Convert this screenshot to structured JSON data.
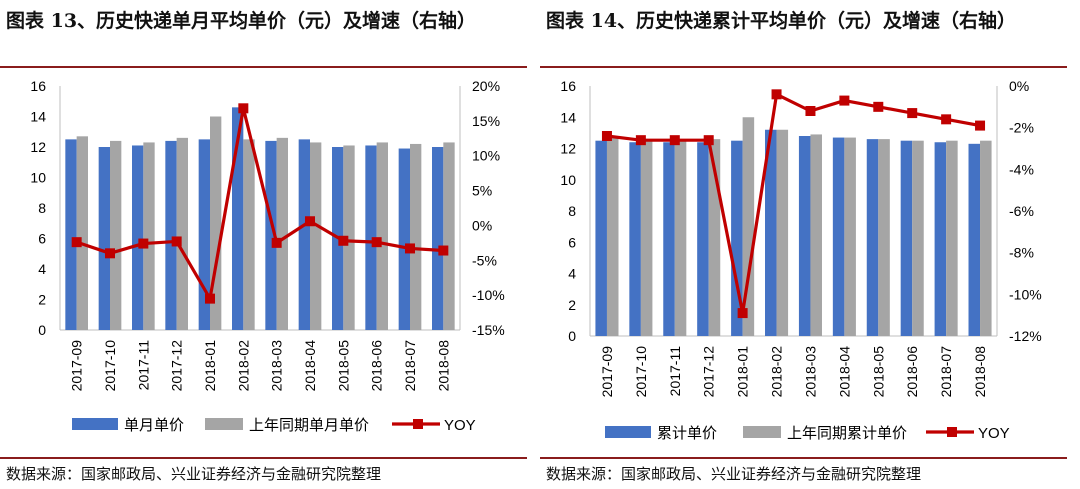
{
  "charts": [
    {
      "title": "图表 13、历史快递单月平均单价（元）及增速（右轴）",
      "source": "数据来源：国家邮政局、兴业证券经济与金融研究院整理"
    },
    {
      "title": "图表 14、历史快递累计平均单价（元）及增速（右轴）",
      "source": "数据来源：国家邮政局、兴业证券经济与金融研究院整理"
    }
  ],
  "colors": {
    "bar_current": "#4472C4",
    "bar_prior": "#A5A5A5",
    "line": "#C00000",
    "rule": "#8A1C1C"
  },
  "chart_data": [
    {
      "type": "bar",
      "title": "图表 13、历史快递单月平均单价（元）及增速（右轴）",
      "categories": [
        "2017-09",
        "2017-10",
        "2017-11",
        "2017-12",
        "2018-01",
        "2018-02",
        "2018-03",
        "2018-04",
        "2018-05",
        "2018-06",
        "2018-07",
        "2018-08"
      ],
      "series": [
        {
          "name": "单月单价",
          "type": "bar",
          "axis": "left",
          "values": [
            12.5,
            12.0,
            12.1,
            12.4,
            12.5,
            14.6,
            12.4,
            12.5,
            12.0,
            12.1,
            11.9,
            12.0
          ]
        },
        {
          "name": "上年同期单月单价",
          "type": "bar",
          "axis": "left",
          "values": [
            12.7,
            12.4,
            12.3,
            12.6,
            14.0,
            12.5,
            12.6,
            12.3,
            12.1,
            12.3,
            12.2,
            12.3
          ]
        },
        {
          "name": "YOY",
          "type": "line",
          "axis": "right",
          "values": [
            -2.4,
            -4.0,
            -2.6,
            -2.3,
            -10.5,
            16.8,
            -2.5,
            0.6,
            -2.2,
            -2.4,
            -3.3,
            -3.6
          ]
        }
      ],
      "left_axis": {
        "ylim": [
          0,
          16
        ],
        "ticks": [
          "0",
          "2",
          "4",
          "6",
          "8",
          "10",
          "12",
          "14",
          "16"
        ]
      },
      "right_axis": {
        "ylim": [
          -15,
          20
        ],
        "ticks": [
          "-15%",
          "-10%",
          "-5%",
          "0%",
          "5%",
          "10%",
          "15%",
          "20%"
        ]
      },
      "grid": false,
      "legend": "bottom"
    },
    {
      "type": "bar",
      "title": "图表 14、历史快递累计平均单价（元）及增速（右轴）",
      "categories": [
        "2017-09",
        "2017-10",
        "2017-11",
        "2017-12",
        "2018-01",
        "2018-02",
        "2018-03",
        "2018-04",
        "2018-05",
        "2018-06",
        "2018-07",
        "2018-08"
      ],
      "series": [
        {
          "name": "累计单价",
          "type": "bar",
          "axis": "left",
          "values": [
            12.5,
            12.4,
            12.4,
            12.4,
            12.5,
            13.2,
            12.8,
            12.7,
            12.6,
            12.5,
            12.4,
            12.3
          ]
        },
        {
          "name": "上年同期累计单价",
          "type": "bar",
          "axis": "left",
          "values": [
            12.7,
            12.6,
            12.6,
            12.6,
            14.0,
            13.2,
            12.9,
            12.7,
            12.6,
            12.5,
            12.5,
            12.5
          ]
        },
        {
          "name": "YOY",
          "type": "line",
          "axis": "right",
          "values": [
            -2.4,
            -2.6,
            -2.6,
            -2.6,
            -10.9,
            -0.4,
            -1.2,
            -0.7,
            -1.0,
            -1.3,
            -1.6,
            -1.9
          ]
        }
      ],
      "left_axis": {
        "ylim": [
          0,
          16
        ],
        "ticks": [
          "0",
          "2",
          "4",
          "6",
          "8",
          "10",
          "12",
          "14",
          "16"
        ]
      },
      "right_axis": {
        "ylim": [
          -12,
          0
        ],
        "ticks": [
          "-12%",
          "-10%",
          "-8%",
          "-6%",
          "-4%",
          "-2%",
          "0%"
        ]
      },
      "grid": false,
      "legend": "bottom"
    }
  ]
}
